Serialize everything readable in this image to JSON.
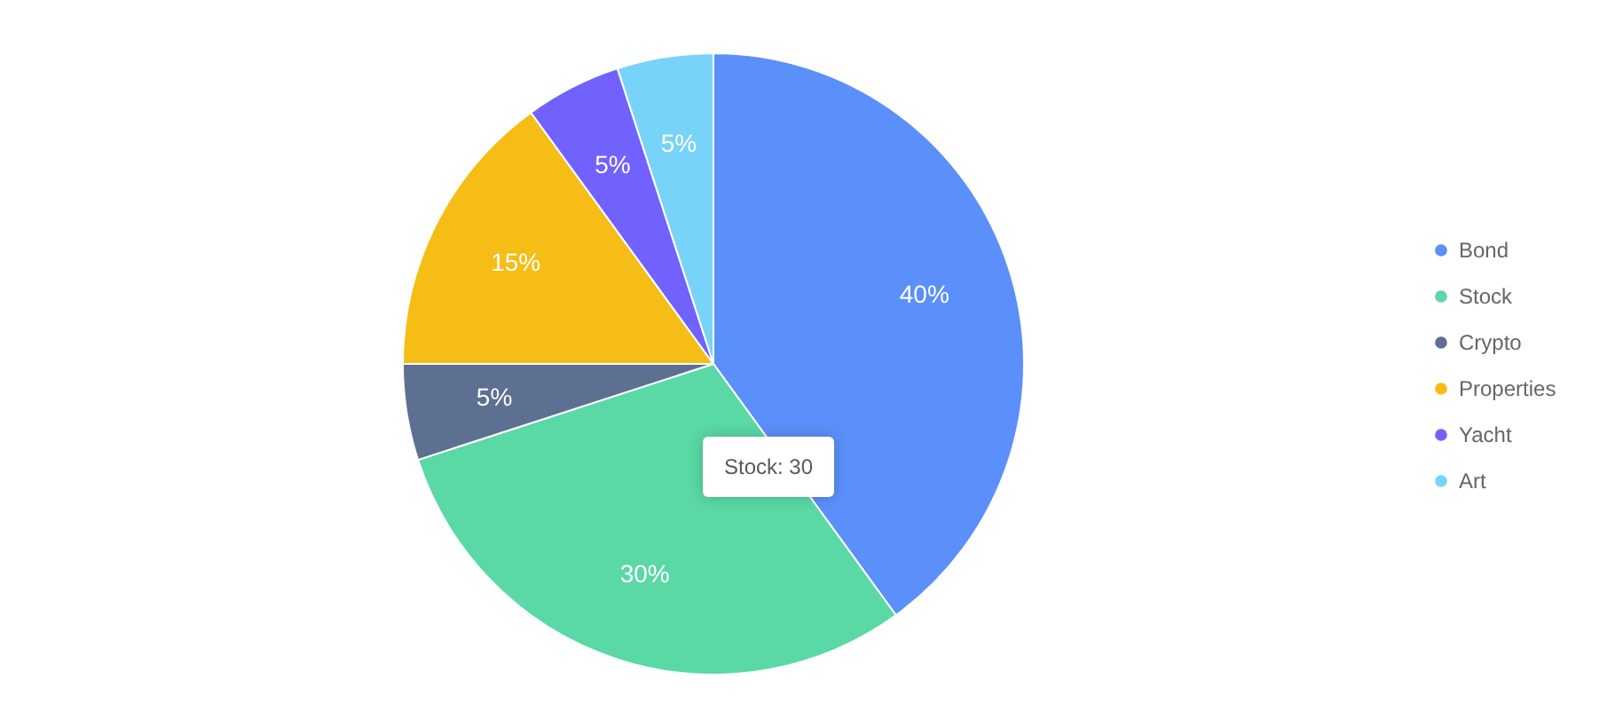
{
  "chart_data": {
    "type": "pie",
    "categories": [
      "Bond",
      "Stock",
      "Crypto",
      "Properties",
      "Yacht",
      "Art"
    ],
    "values": [
      40,
      30,
      5,
      15,
      5,
      5
    ],
    "colors": [
      "#5b8ff9",
      "#5ad8a6",
      "#5d7092",
      "#f6bd16",
      "#7262fd",
      "#78d3f8"
    ],
    "value_labels": [
      "40%",
      "30%",
      "5%",
      "15%",
      "5%",
      "5%"
    ],
    "legend": "right",
    "annotations": [
      "Stock: 30"
    ]
  }
}
